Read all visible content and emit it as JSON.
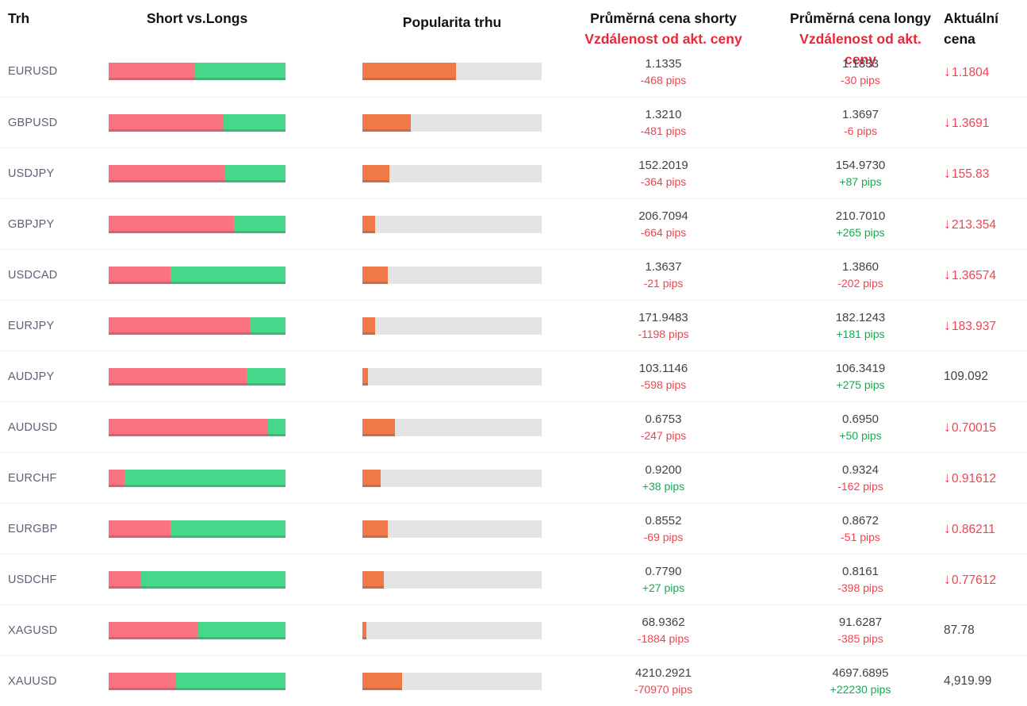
{
  "colors": {
    "red_bar": "#f97380",
    "green_bar": "#47d68a",
    "orange_bar": "#f0794a",
    "track_gray": "#e4e4e4",
    "red_text": "#f4414e",
    "green_text": "#0caf50",
    "header_red": "#e82739"
  },
  "header": {
    "market": "Trh",
    "short_vs_longs": "Short vs.Longs",
    "popularity": "Popularita trhu",
    "avg_shorts_line1": "Průměrná cena shorty",
    "avg_shorts_line2": "Vzdálenost od akt. ceny",
    "avg_longs_line1": "Průměrná cena longy",
    "avg_longs_line2": "Vzdálenost od akt. ceny",
    "actual_line1": "Aktuální",
    "actual_line2": "cena"
  },
  "chart_data": {
    "type": "bar",
    "note": "Per-row sentiment bars: short_pct/long_pct (red/green split, %) and pop_pct (orange popularity fill, %)"
  },
  "rows": [
    {
      "market": "EURUSD",
      "short_pct": 49,
      "long_pct": 51,
      "pop_pct": 52,
      "short_price": "1.1335",
      "short_pips": "-468 pips",
      "short_dir": "neg",
      "long_price": "1.1833",
      "long_pips": "-30 pips",
      "long_dir": "neg",
      "actual_price": "1.1804",
      "actual_dir": "down"
    },
    {
      "market": "GBPUSD",
      "short_pct": 65,
      "long_pct": 35,
      "pop_pct": 27,
      "short_price": "1.3210",
      "short_pips": "-481 pips",
      "short_dir": "neg",
      "long_price": "1.3697",
      "long_pips": "-6 pips",
      "long_dir": "neg",
      "actual_price": "1.3691",
      "actual_dir": "down"
    },
    {
      "market": "USDJPY",
      "short_pct": 66,
      "long_pct": 34,
      "pop_pct": 15,
      "short_price": "152.2019",
      "short_pips": "-364 pips",
      "short_dir": "neg",
      "long_price": "154.9730",
      "long_pips": "+87 pips",
      "long_dir": "pos",
      "actual_price": "155.83",
      "actual_dir": "down"
    },
    {
      "market": "GBPJPY",
      "short_pct": 71,
      "long_pct": 29,
      "pop_pct": 7,
      "short_price": "206.7094",
      "short_pips": "-664 pips",
      "short_dir": "neg",
      "long_price": "210.7010",
      "long_pips": "+265 pips",
      "long_dir": "pos",
      "actual_price": "213.354",
      "actual_dir": "down"
    },
    {
      "market": "USDCAD",
      "short_pct": 35,
      "long_pct": 65,
      "pop_pct": 14,
      "short_price": "1.3637",
      "short_pips": "-21 pips",
      "short_dir": "neg",
      "long_price": "1.3860",
      "long_pips": "-202 pips",
      "long_dir": "neg",
      "actual_price": "1.36574",
      "actual_dir": "down"
    },
    {
      "market": "EURJPY",
      "short_pct": 80,
      "long_pct": 20,
      "pop_pct": 7,
      "short_price": "171.9483",
      "short_pips": "-1198 pips",
      "short_dir": "neg",
      "long_price": "182.1243",
      "long_pips": "+181 pips",
      "long_dir": "pos",
      "actual_price": "183.937",
      "actual_dir": "down"
    },
    {
      "market": "AUDJPY",
      "short_pct": 78,
      "long_pct": 22,
      "pop_pct": 3,
      "short_price": "103.1146",
      "short_pips": "-598 pips",
      "short_dir": "neg",
      "long_price": "106.3419",
      "long_pips": "+275 pips",
      "long_dir": "pos",
      "actual_price": "109.092",
      "actual_dir": "none"
    },
    {
      "market": "AUDUSD",
      "short_pct": 90,
      "long_pct": 10,
      "pop_pct": 18,
      "short_price": "0.6753",
      "short_pips": "-247 pips",
      "short_dir": "neg",
      "long_price": "0.6950",
      "long_pips": "+50 pips",
      "long_dir": "pos",
      "actual_price": "0.70015",
      "actual_dir": "down"
    },
    {
      "market": "EURCHF",
      "short_pct": 9,
      "long_pct": 91,
      "pop_pct": 10,
      "short_price": "0.9200",
      "short_pips": "+38 pips",
      "short_dir": "pos",
      "long_price": "0.9324",
      "long_pips": "-162 pips",
      "long_dir": "neg",
      "actual_price": "0.91612",
      "actual_dir": "down"
    },
    {
      "market": "EURGBP",
      "short_pct": 35,
      "long_pct": 65,
      "pop_pct": 14,
      "short_price": "0.8552",
      "short_pips": "-69 pips",
      "short_dir": "neg",
      "long_price": "0.8672",
      "long_pips": "-51 pips",
      "long_dir": "neg",
      "actual_price": "0.86211",
      "actual_dir": "down"
    },
    {
      "market": "USDCHF",
      "short_pct": 18,
      "long_pct": 82,
      "pop_pct": 12,
      "short_price": "0.7790",
      "short_pips": "+27 pips",
      "short_dir": "pos",
      "long_price": "0.8161",
      "long_pips": "-398 pips",
      "long_dir": "neg",
      "actual_price": "0.77612",
      "actual_dir": "down"
    },
    {
      "market": "XAGUSD",
      "short_pct": 50,
      "long_pct": 50,
      "pop_pct": 2,
      "short_price": "68.9362",
      "short_pips": "-1884 pips",
      "short_dir": "neg",
      "long_price": "91.6287",
      "long_pips": "-385 pips",
      "long_dir": "neg",
      "actual_price": "87.78",
      "actual_dir": "none"
    },
    {
      "market": "XAUUSD",
      "short_pct": 38,
      "long_pct": 62,
      "pop_pct": 22,
      "short_price": "4210.2921",
      "short_pips": "-70970 pips",
      "short_dir": "neg",
      "long_price": "4697.6895",
      "long_pips": "+22230 pips",
      "long_dir": "pos",
      "actual_price": "4,919.99",
      "actual_dir": "none"
    }
  ]
}
